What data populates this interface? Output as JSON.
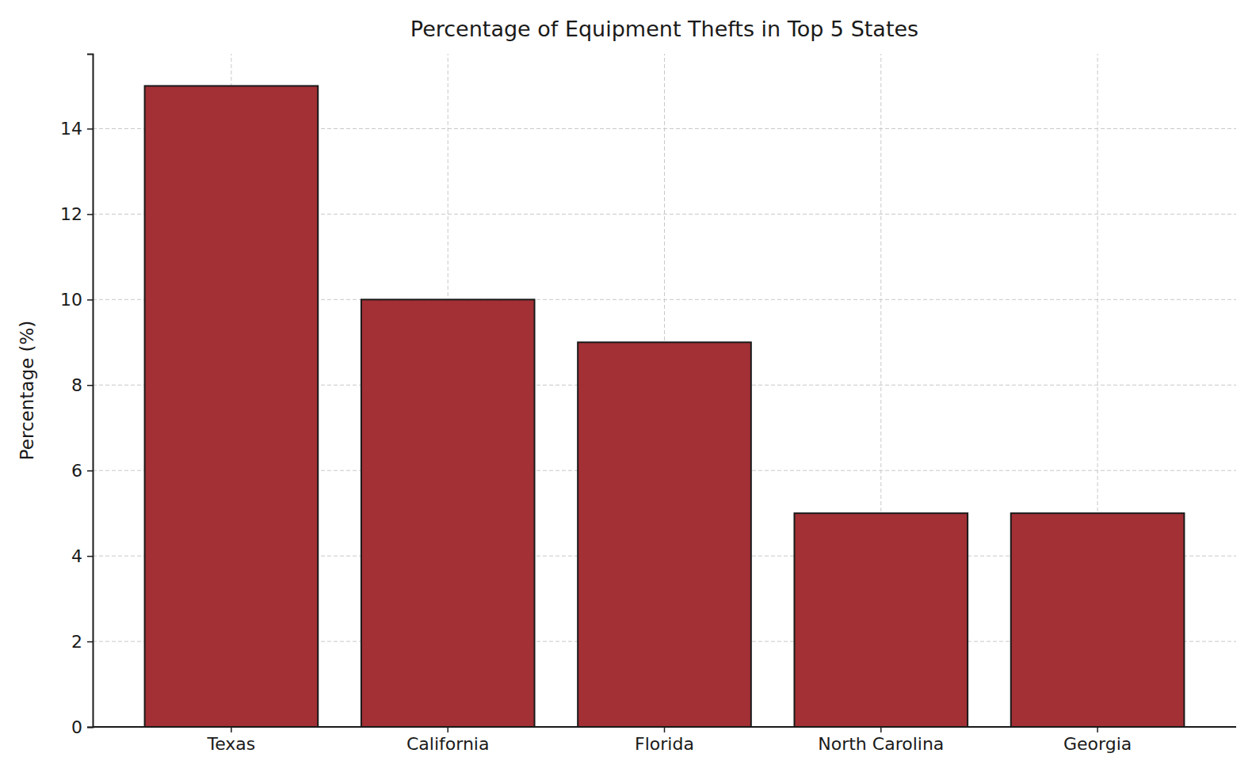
{
  "chart_data": {
    "type": "bar",
    "title": "Percentage of Equipment Thefts in Top 5 States",
    "y_label": "Percentage (%)",
    "categories": [
      "Texas",
      "California",
      "Florida",
      "North Carolina",
      "Georgia"
    ],
    "values": [
      15,
      10,
      9,
      5,
      5
    ],
    "color": "#a23035",
    "ylim": [
      0,
      15.75
    ],
    "yticks": [
      0,
      2,
      4,
      6,
      8,
      10,
      12,
      14
    ],
    "grid": true
  }
}
